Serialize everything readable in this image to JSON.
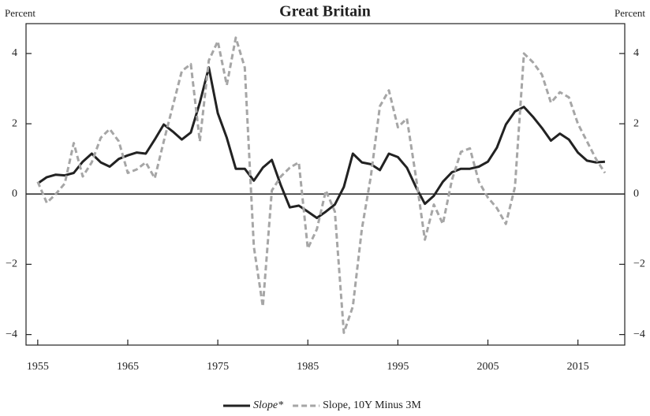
{
  "chart_data": {
    "type": "line",
    "title": "Great Britain",
    "y_label": "Percent",
    "y2_label": "Percent",
    "x": [
      1955,
      1956,
      1957,
      1958,
      1959,
      1960,
      1961,
      1962,
      1963,
      1964,
      1965,
      1966,
      1967,
      1968,
      1969,
      1970,
      1971,
      1972,
      1973,
      1974,
      1975,
      1976,
      1977,
      1978,
      1979,
      1980,
      1981,
      1982,
      1983,
      1984,
      1985,
      1986,
      1987,
      1988,
      1989,
      1990,
      1991,
      1992,
      1993,
      1994,
      1995,
      1996,
      1997,
      1998,
      1999,
      2000,
      2001,
      2002,
      2003,
      2004,
      2005,
      2006,
      2007,
      2008,
      2009,
      2010,
      2011,
      2012,
      2013,
      2014,
      2015,
      2016,
      2017,
      2018
    ],
    "series": [
      {
        "name": "Slope*",
        "color": "#222222",
        "style": "solid",
        "values": [
          0.3,
          0.48,
          0.55,
          0.53,
          0.6,
          0.92,
          1.15,
          0.9,
          0.78,
          1.0,
          1.1,
          1.18,
          1.15,
          1.55,
          1.98,
          1.78,
          1.55,
          1.75,
          2.6,
          3.6,
          2.3,
          1.6,
          0.72,
          0.72,
          0.38,
          0.75,
          0.97,
          0.25,
          -0.38,
          -0.33,
          -0.5,
          -0.68,
          -0.5,
          -0.3,
          0.2,
          1.15,
          0.9,
          0.85,
          0.68,
          1.15,
          1.05,
          0.75,
          0.2,
          -0.28,
          -0.05,
          0.35,
          0.62,
          0.72,
          0.72,
          0.78,
          0.92,
          1.32,
          1.98,
          2.35,
          2.48,
          2.2,
          1.88,
          1.52,
          1.72,
          1.55,
          1.18,
          0.95,
          0.9,
          0.92
        ]
      },
      {
        "name": "Slope, 10Y Minus 3M",
        "color": "#a6a6a6",
        "style": "dashed",
        "values": [
          0.35,
          -0.25,
          0.0,
          0.3,
          1.45,
          0.5,
          0.9,
          1.6,
          1.85,
          1.5,
          0.6,
          0.7,
          0.9,
          0.45,
          1.5,
          2.5,
          3.5,
          3.7,
          1.5,
          3.8,
          4.35,
          3.1,
          4.45,
          3.6,
          -1.5,
          -3.2,
          0.1,
          0.5,
          0.75,
          0.9,
          -1.55,
          -1.0,
          0.1,
          -0.5,
          -3.95,
          -3.2,
          -1.0,
          0.5,
          2.5,
          2.95,
          1.9,
          2.15,
          0.5,
          -1.3,
          -0.3,
          -0.85,
          0.4,
          1.2,
          1.3,
          0.35,
          -0.1,
          -0.4,
          -0.85,
          0.2,
          4.0,
          3.75,
          3.4,
          2.6,
          2.9,
          2.75,
          2.0,
          1.5,
          1.0,
          0.6
        ]
      }
    ],
    "xlim": [
      1953.7,
      2020.2
    ],
    "xticks": [
      1955,
      1965,
      1975,
      1985,
      1995,
      2005,
      2015
    ],
    "ylim": [
      -4.3,
      4.85
    ],
    "yticks": [
      {
        "value": -4,
        "label": "−4"
      },
      {
        "value": -2,
        "label": "−2"
      },
      0,
      2,
      4
    ],
    "zero_line": true
  }
}
